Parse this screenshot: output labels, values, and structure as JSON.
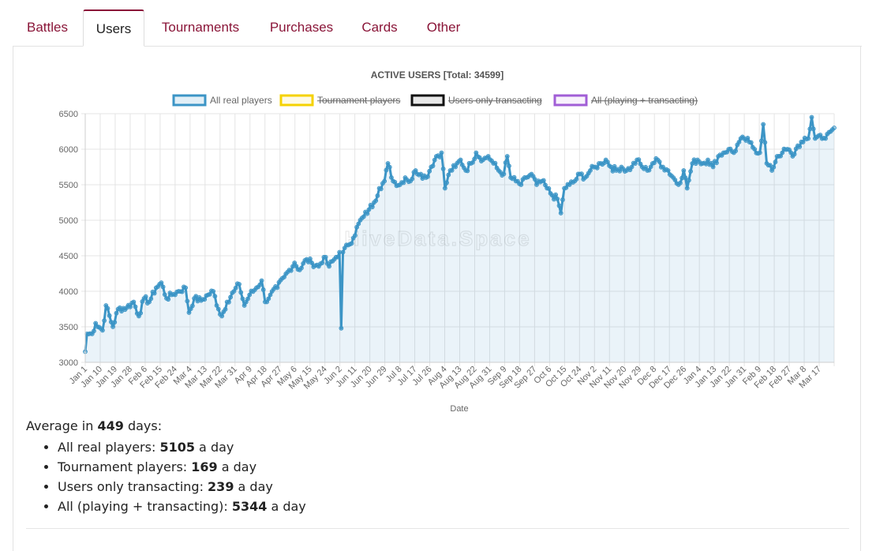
{
  "tabs": [
    {
      "label": "Battles",
      "active": false
    },
    {
      "label": "Users",
      "active": true
    },
    {
      "label": "Tournaments",
      "active": false
    },
    {
      "label": "Purchases",
      "active": false
    },
    {
      "label": "Cards",
      "active": false
    },
    {
      "label": "Other",
      "active": false
    }
  ],
  "watermark": "HiveData.Space",
  "chart_data": {
    "type": "line",
    "title": "ACTIVE USERS [Total: 34599]",
    "xlabel": "Date",
    "ylabel": "",
    "ylim": [
      3000,
      6500
    ],
    "yticks": [
      3000,
      3500,
      4000,
      4500,
      5000,
      5500,
      6000,
      6500
    ],
    "grid": true,
    "legend_position": "top",
    "x_tick_labels": [
      "Jan 1",
      "Jan 10",
      "Jan 19",
      "Jan 28",
      "Feb 6",
      "Feb 15",
      "Feb 24",
      "Mar 4",
      "Mar 13",
      "Mar 22",
      "Mar 31",
      "Apr 9",
      "Apr 18",
      "Apr 27",
      "May 6",
      "May 15",
      "May 24",
      "Jun 2",
      "Jun 11",
      "Jun 20",
      "Jun 29",
      "Jul 8",
      "Jul 17",
      "Jul 26",
      "Aug 4",
      "Aug 13",
      "Aug 22",
      "Aug 31",
      "Sep 9",
      "Sep 18",
      "Sep 27",
      "Oct 6",
      "Oct 15",
      "Oct 24",
      "Nov 2",
      "Nov 11",
      "Nov 20",
      "Nov 29",
      "Dec 8",
      "Dec 17",
      "Dec 26",
      "Jan 4",
      "Jan 13",
      "Jan 22",
      "Jan 31",
      "Feb 9",
      "Feb 18",
      "Feb 27",
      "Mar 8",
      "Mar 17"
    ],
    "series": [
      {
        "name": "All real players",
        "color": "#3c95c6",
        "hidden": false,
        "anchors": [
          [
            0,
            3150
          ],
          [
            1,
            3400
          ],
          [
            4,
            3400
          ],
          [
            6,
            3550
          ],
          [
            10,
            3450
          ],
          [
            12,
            3800
          ],
          [
            16,
            3500
          ],
          [
            19,
            3750
          ],
          [
            24,
            3770
          ],
          [
            28,
            3850
          ],
          [
            31,
            3650
          ],
          [
            34,
            3900
          ],
          [
            37,
            3850
          ],
          [
            41,
            4050
          ],
          [
            44,
            4120
          ],
          [
            47,
            3900
          ],
          [
            50,
            3950
          ],
          [
            54,
            4000
          ],
          [
            58,
            4050
          ],
          [
            60,
            3700
          ],
          [
            63,
            3900
          ],
          [
            67,
            3870
          ],
          [
            71,
            3950
          ],
          [
            74,
            4000
          ],
          [
            77,
            3750
          ],
          [
            79,
            3650
          ],
          [
            82,
            3850
          ],
          [
            86,
            4000
          ],
          [
            89,
            4100
          ],
          [
            92,
            3800
          ],
          [
            95,
            3950
          ],
          [
            99,
            4050
          ],
          [
            102,
            4150
          ],
          [
            104,
            3850
          ],
          [
            107,
            3950
          ],
          [
            111,
            4050
          ],
          [
            115,
            4200
          ],
          [
            118,
            4300
          ],
          [
            121,
            4400
          ],
          [
            124,
            4300
          ],
          [
            128,
            4450
          ],
          [
            131,
            4400
          ],
          [
            135,
            4350
          ],
          [
            138,
            4480
          ],
          [
            141,
            4350
          ],
          [
            144,
            4450
          ],
          [
            147,
            4550
          ],
          [
            148,
            3480
          ],
          [
            149,
            4550
          ],
          [
            152,
            4650
          ],
          [
            155,
            4750
          ],
          [
            158,
            4950
          ],
          [
            161,
            5050
          ],
          [
            164,
            5150
          ],
          [
            167,
            5250
          ],
          [
            170,
            5450
          ],
          [
            173,
            5550
          ],
          [
            175,
            5800
          ],
          [
            178,
            5550
          ],
          [
            182,
            5500
          ],
          [
            185,
            5600
          ],
          [
            188,
            5550
          ],
          [
            191,
            5700
          ],
          [
            194,
            5650
          ],
          [
            197,
            5600
          ],
          [
            200,
            5750
          ],
          [
            203,
            5900
          ],
          [
            206,
            5950
          ],
          [
            208,
            5450
          ],
          [
            211,
            5700
          ],
          [
            214,
            5750
          ],
          [
            217,
            5850
          ],
          [
            220,
            5700
          ],
          [
            223,
            5800
          ],
          [
            226,
            5950
          ],
          [
            230,
            5850
          ],
          [
            233,
            5900
          ],
          [
            236,
            5800
          ],
          [
            239,
            5700
          ],
          [
            242,
            5650
          ],
          [
            244,
            5900
          ],
          [
            246,
            5600
          ],
          [
            249,
            5550
          ],
          [
            252,
            5500
          ],
          [
            255,
            5600
          ],
          [
            258,
            5650
          ],
          [
            261,
            5500
          ],
          [
            264,
            5550
          ],
          [
            267,
            5450
          ],
          [
            270,
            5350
          ],
          [
            273,
            5300
          ],
          [
            275,
            5100
          ],
          [
            277,
            5450
          ],
          [
            280,
            5500
          ],
          [
            283,
            5550
          ],
          [
            286,
            5650
          ],
          [
            289,
            5600
          ],
          [
            292,
            5700
          ],
          [
            295,
            5750
          ],
          [
            298,
            5800
          ],
          [
            301,
            5850
          ],
          [
            304,
            5750
          ],
          [
            307,
            5700
          ],
          [
            310,
            5750
          ],
          [
            313,
            5700
          ],
          [
            316,
            5750
          ],
          [
            319,
            5850
          ],
          [
            322,
            5750
          ],
          [
            325,
            5700
          ],
          [
            328,
            5800
          ],
          [
            331,
            5850
          ],
          [
            334,
            5750
          ],
          [
            337,
            5700
          ],
          [
            340,
            5600
          ],
          [
            343,
            5500
          ],
          [
            346,
            5700
          ],
          [
            348,
            5450
          ],
          [
            351,
            5800
          ],
          [
            354,
            5850
          ],
          [
            357,
            5800
          ],
          [
            360,
            5850
          ],
          [
            363,
            5750
          ],
          [
            366,
            5900
          ],
          [
            369,
            5950
          ],
          [
            372,
            6000
          ],
          [
            375,
            5950
          ],
          [
            378,
            6100
          ],
          [
            381,
            6150
          ],
          [
            384,
            6100
          ],
          [
            387,
            6000
          ],
          [
            390,
            5950
          ],
          [
            392,
            6350
          ],
          [
            394,
            5800
          ],
          [
            397,
            5700
          ],
          [
            400,
            5900
          ],
          [
            403,
            5950
          ],
          [
            406,
            6000
          ],
          [
            409,
            5900
          ],
          [
            412,
            6050
          ],
          [
            415,
            6100
          ],
          [
            418,
            6150
          ],
          [
            420,
            6450
          ],
          [
            422,
            6150
          ],
          [
            425,
            6200
          ],
          [
            428,
            6150
          ],
          [
            431,
            6250
          ],
          [
            433,
            6300
          ]
        ],
        "point_count": 434
      },
      {
        "name": "Tournament players",
        "color": "#f5d200",
        "hidden": true
      },
      {
        "name": "Users only transacting",
        "color": "#111111",
        "hidden": true
      },
      {
        "name": "All (playing + transacting)",
        "color": "#a15ed6",
        "hidden": true
      }
    ]
  },
  "summary": {
    "prefix": "Average in ",
    "days": "449",
    "suffix": " days:",
    "items": [
      {
        "label": "All real players: ",
        "value": "5105",
        "unit": " a day"
      },
      {
        "label": "Tournament players: ",
        "value": "169",
        "unit": " a day"
      },
      {
        "label": "Users only transacting: ",
        "value": "239",
        "unit": " a day"
      },
      {
        "label": "All (playing + transacting): ",
        "value": "5344",
        "unit": " a day"
      }
    ]
  }
}
